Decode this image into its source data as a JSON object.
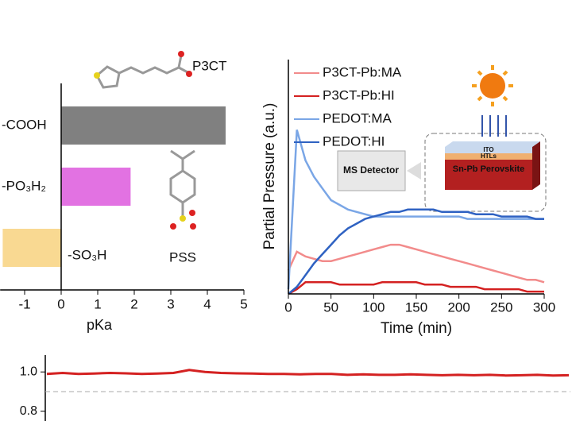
{
  "chart_data": [
    {
      "type": "barh",
      "categories": [
        "-COOH",
        "-PO₃H₂",
        "-SO₃H"
      ],
      "values": [
        4.5,
        1.9,
        -1.6
      ],
      "colors": [
        "#808080",
        "#e272e2",
        "#f9d992"
      ],
      "xlim": [
        -1.67,
        5
      ],
      "xticks": [
        -1,
        0,
        1,
        2,
        3,
        4,
        5
      ],
      "xlabel": "pKa",
      "annotations": [
        "P3CT",
        "PSS"
      ]
    },
    {
      "type": "line",
      "xlabel": "Time (min)",
      "ylabel": "Partial Pressure (a.u.)",
      "x": [
        0,
        10,
        20,
        30,
        40,
        50,
        60,
        70,
        80,
        90,
        100,
        110,
        120,
        130,
        140,
        150,
        160,
        170,
        180,
        190,
        200,
        210,
        220,
        230,
        240,
        250,
        260,
        270,
        280,
        290,
        300
      ],
      "xlim": [
        0,
        300
      ],
      "xticks": [
        0,
        50,
        100,
        150,
        200,
        250,
        300
      ],
      "ylim": [
        0,
        1
      ],
      "legend": "top-left",
      "series": [
        {
          "name": "P3CT-Pb:MA",
          "color": "#f28b8b",
          "values": [
            0.1,
            0.18,
            0.16,
            0.15,
            0.14,
            0.14,
            0.15,
            0.16,
            0.17,
            0.18,
            0.19,
            0.2,
            0.21,
            0.21,
            0.2,
            0.19,
            0.18,
            0.17,
            0.16,
            0.15,
            0.14,
            0.13,
            0.12,
            0.11,
            0.1,
            0.09,
            0.08,
            0.07,
            0.06,
            0.06,
            0.05
          ]
        },
        {
          "name": "P3CT-Pb:HI",
          "color": "#d42121",
          "values": [
            0.0,
            0.02,
            0.05,
            0.05,
            0.05,
            0.05,
            0.04,
            0.04,
            0.04,
            0.04,
            0.04,
            0.05,
            0.05,
            0.05,
            0.05,
            0.05,
            0.04,
            0.04,
            0.04,
            0.03,
            0.03,
            0.03,
            0.03,
            0.02,
            0.02,
            0.02,
            0.02,
            0.02,
            0.01,
            0.01,
            0.01
          ]
        },
        {
          "name": "PEDOT:MA",
          "color": "#7aa6e6",
          "values": [
            0.02,
            0.7,
            0.57,
            0.5,
            0.45,
            0.4,
            0.38,
            0.36,
            0.35,
            0.34,
            0.33,
            0.33,
            0.33,
            0.33,
            0.33,
            0.33,
            0.33,
            0.33,
            0.33,
            0.33,
            0.33,
            0.32,
            0.32,
            0.32,
            0.32,
            0.32,
            0.32,
            0.32,
            0.32,
            0.32,
            0.32
          ]
        },
        {
          "name": "PEDOT:HI",
          "color": "#2f62c2",
          "values": [
            0.0,
            0.03,
            0.08,
            0.13,
            0.17,
            0.21,
            0.25,
            0.28,
            0.3,
            0.32,
            0.33,
            0.34,
            0.35,
            0.35,
            0.36,
            0.36,
            0.36,
            0.36,
            0.35,
            0.35,
            0.35,
            0.35,
            0.34,
            0.34,
            0.34,
            0.33,
            0.33,
            0.33,
            0.33,
            0.32,
            0.32
          ]
        }
      ],
      "inset_labels": [
        "MS Detector",
        "ITO",
        "HTLs",
        "Sn-Pb Perovskite"
      ]
    },
    {
      "type": "line",
      "categories": [
        null,
        null,
        null,
        null,
        null,
        null,
        null,
        null,
        null,
        null,
        null,
        null,
        null,
        null,
        null,
        null,
        null,
        null,
        null,
        null,
        null,
        null,
        null,
        null,
        null,
        null,
        null,
        null,
        null,
        null,
        null,
        null,
        null,
        null
      ],
      "ylim": [
        0.75,
        1.086
      ],
      "yticks": [
        {
          "value": 0.8,
          "label": "0.8"
        },
        {
          "value": 1.0,
          "label": "1.0"
        }
      ],
      "reference_line": 0.9,
      "series": [
        {
          "color": "#d42121",
          "values": [
            0.99,
            0.995,
            0.99,
            0.992,
            0.995,
            0.993,
            0.99,
            0.992,
            0.995,
            1.01,
            1.0,
            0.995,
            0.993,
            0.992,
            0.99,
            0.99,
            0.988,
            0.99,
            0.99,
            0.985,
            0.988,
            0.985,
            0.985,
            0.988,
            0.985,
            0.983,
            0.985,
            0.983,
            0.985,
            0.982,
            0.983,
            0.985,
            0.982,
            0.983
          ]
        }
      ]
    }
  ]
}
